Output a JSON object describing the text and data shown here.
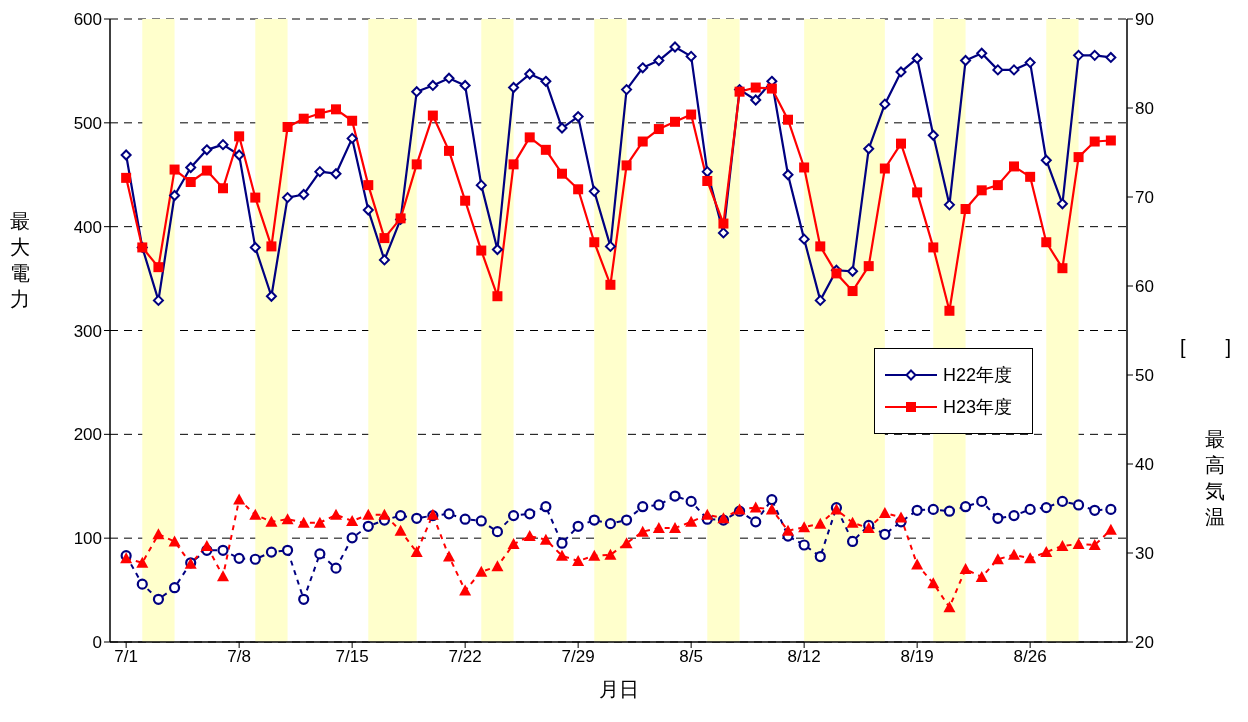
{
  "chart_data": {
    "type": "line",
    "xlabel": "月日",
    "ylabel": "最大電力",
    "y2label": "最高気温",
    "annotations": [
      "[　　]"
    ],
    "x": [
      "--07-01",
      "--07-02",
      "--07-03",
      "--07-04",
      "--07-05",
      "--07-06",
      "--07-07",
      "--07-08",
      "--07-09",
      "--07-10",
      "--07-11",
      "--07-12",
      "--07-13",
      "--07-14",
      "--07-15",
      "--07-16",
      "--07-17",
      "--07-18",
      "--07-19",
      "--07-20",
      "--07-21",
      "--07-22",
      "--07-23",
      "--07-24",
      "--07-25",
      "--07-26",
      "--07-27",
      "--07-28",
      "--07-29",
      "--07-30",
      "--07-31",
      "--08-01",
      "--08-02",
      "--08-03",
      "--08-04",
      "--08-05",
      "--08-06",
      "--08-07",
      "--08-08",
      "--08-09",
      "--08-10",
      "--08-11",
      "--08-12",
      "--08-13",
      "--08-14",
      "--08-15",
      "--08-16",
      "--08-17",
      "--08-18",
      "--08-19",
      "--08-20",
      "--08-21",
      "--08-22",
      "--08-23",
      "--08-24",
      "--08-25",
      "--08-26",
      "--08-27",
      "--08-28",
      "--08-29",
      "--08-30",
      "--08-31"
    ],
    "xlim": [
      "--06-30",
      "--09-01"
    ],
    "xticks": [
      {
        "value": "--07-01",
        "label": "7/1"
      },
      {
        "value": "--07-08",
        "label": "7/8"
      },
      {
        "value": "--07-15",
        "label": "7/15"
      },
      {
        "value": "--07-22",
        "label": "7/22"
      },
      {
        "value": "--07-29",
        "label": "7/29"
      },
      {
        "value": "--08-05",
        "label": "8/5"
      },
      {
        "value": "--08-12",
        "label": "8/12"
      },
      {
        "value": "--08-19",
        "label": "8/19"
      },
      {
        "value": "--08-26",
        "label": "8/26"
      }
    ],
    "ylim": [
      0,
      600
    ],
    "yticks": [
      0,
      100,
      200,
      300,
      400,
      500,
      600
    ],
    "y2lim": [
      20,
      90
    ],
    "y2ticks": [
      20,
      30,
      40,
      50,
      60,
      70,
      80,
      90
    ],
    "grid": "y",
    "legend": "right",
    "bands": [
      {
        "axis": "x",
        "from": "--07-02",
        "to": "--07-04",
        "color": "#ffffcc"
      },
      {
        "axis": "x",
        "from": "--07-09",
        "to": "--07-11",
        "color": "#ffffcc"
      },
      {
        "axis": "x",
        "from": "--07-16",
        "to": "--07-19",
        "color": "#ffffcc"
      },
      {
        "axis": "x",
        "from": "--07-23",
        "to": "--07-25",
        "color": "#ffffcc"
      },
      {
        "axis": "x",
        "from": "--07-30",
        "to": "--08-01",
        "color": "#ffffcc"
      },
      {
        "axis": "x",
        "from": "--08-06",
        "to": "--08-08",
        "color": "#ffffcc"
      },
      {
        "axis": "x",
        "from": "--08-12",
        "to": "--08-17",
        "color": "#ffffcc"
      },
      {
        "axis": "x",
        "from": "--08-20",
        "to": "--08-22",
        "color": "#ffffcc"
      },
      {
        "axis": "x",
        "from": "--08-27",
        "to": "--08-29",
        "color": "#ffffcc"
      }
    ],
    "series": [
      {
        "name": "H22年度",
        "color": "#000080",
        "marker": "diamond",
        "line_style": "solid",
        "values": [
          469,
          380,
          329,
          430,
          457,
          474,
          479,
          469,
          380,
          333,
          428,
          431,
          453,
          451,
          485,
          416,
          368,
          407,
          530,
          536,
          543,
          536,
          440,
          378,
          534,
          547,
          540,
          495,
          506,
          434,
          381,
          532,
          553,
          560,
          573,
          564,
          453,
          394,
          532,
          522,
          540,
          450,
          388,
          329,
          358,
          357,
          475,
          518,
          549,
          562,
          488,
          421,
          560,
          567,
          551,
          551,
          558,
          464,
          422,
          565,
          565,
          563
        ]
      },
      {
        "name": "H23年度",
        "color": "#ff0000",
        "marker": "square",
        "line_style": "solid",
        "values": [
          447,
          380,
          361,
          455,
          443,
          454,
          437,
          487,
          428,
          381,
          496,
          504,
          509,
          513,
          502,
          440,
          389,
          408,
          460,
          507,
          473,
          425,
          377,
          333,
          460,
          486,
          474,
          451,
          436,
          385,
          344,
          459,
          482,
          494,
          501,
          508,
          444,
          403,
          530,
          534,
          533,
          503,
          457,
          381,
          355,
          338,
          362,
          456,
          480,
          433,
          380,
          319,
          417,
          435,
          440,
          458,
          448,
          385,
          360,
          467,
          482,
          483
        ]
      },
      {
        "color": "#000080",
        "axis": "y2",
        "marker": "circle",
        "line_style": "dashed",
        "values": [
          29.7,
          26.5,
          24.8,
          26.1,
          28.9,
          30.3,
          30.3,
          29.4,
          29.3,
          30.1,
          30.3,
          24.8,
          29.9,
          28.3,
          31.7,
          33.0,
          33.7,
          34.2,
          33.9,
          34.2,
          34.4,
          33.8,
          33.6,
          32.4,
          34.2,
          34.4,
          35.2,
          31.1,
          33.0,
          33.7,
          33.3,
          33.7,
          35.2,
          35.4,
          36.4,
          35.8,
          33.8,
          33.7,
          34.7,
          33.5,
          36.0,
          31.9,
          30.9,
          29.6,
          35.1,
          31.3,
          33.1,
          32.1,
          33.5,
          34.8,
          34.9,
          34.7,
          35.2,
          35.8,
          33.9,
          34.2,
          34.9,
          35.1,
          35.8,
          35.4,
          34.8,
          34.9
        ]
      },
      {
        "color": "#ff0000",
        "axis": "y2",
        "marker": "triangle",
        "line_style": "dashed",
        "values": [
          29.4,
          28.9,
          32.1,
          31.3,
          28.8,
          30.8,
          27.4,
          36.0,
          34.3,
          33.5,
          33.8,
          33.4,
          33.4,
          34.3,
          33.6,
          34.3,
          34.3,
          32.5,
          30.1,
          34.3,
          29.6,
          25.8,
          27.9,
          28.5,
          31.0,
          31.9,
          31.5,
          29.7,
          29.1,
          29.7,
          29.8,
          31.1,
          32.4,
          32.8,
          32.8,
          33.5,
          34.3,
          33.9,
          34.9,
          35.1,
          34.9,
          32.5,
          32.9,
          33.3,
          34.9,
          33.4,
          32.8,
          34.5,
          34.0,
          28.7,
          26.6,
          23.9,
          28.2,
          27.3,
          29.3,
          29.8,
          29.4,
          30.1,
          30.8,
          31.0,
          30.9,
          32.6
        ]
      }
    ]
  }
}
